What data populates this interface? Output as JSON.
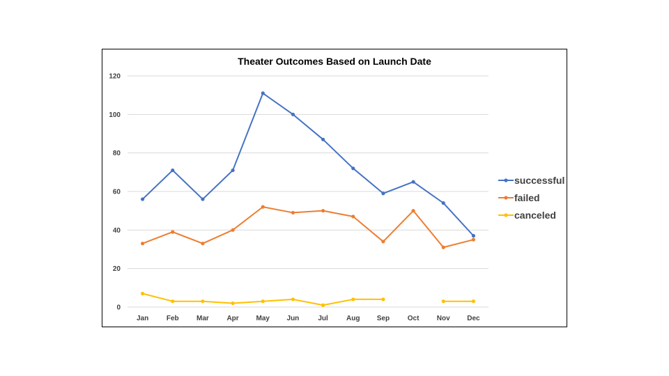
{
  "chart_data": {
    "type": "line",
    "title": "Theater Outcomes Based on Launch Date",
    "xlabel": "",
    "ylabel": "",
    "categories": [
      "Jan",
      "Feb",
      "Mar",
      "Apr",
      "May",
      "Jun",
      "Jul",
      "Aug",
      "Sep",
      "Oct",
      "Nov",
      "Dec"
    ],
    "ylim": [
      0,
      120
    ],
    "yticks": [
      "0",
      "20",
      "40",
      "60",
      "80",
      "100",
      "120"
    ],
    "grid": true,
    "legend": "right",
    "series": [
      {
        "name": "successful",
        "color": "#4472C4",
        "values": [
          56,
          71,
          56,
          71,
          111,
          100,
          87,
          72,
          59,
          65,
          54,
          37
        ]
      },
      {
        "name": "failed",
        "color": "#ED7D31",
        "values": [
          33,
          39,
          33,
          40,
          52,
          49,
          50,
          47,
          34,
          50,
          31,
          35
        ]
      },
      {
        "name": "canceled",
        "color": "#FFC000",
        "values": [
          7,
          3,
          3,
          2,
          3,
          4,
          1,
          4,
          4,
          null,
          3,
          3
        ]
      }
    ]
  }
}
